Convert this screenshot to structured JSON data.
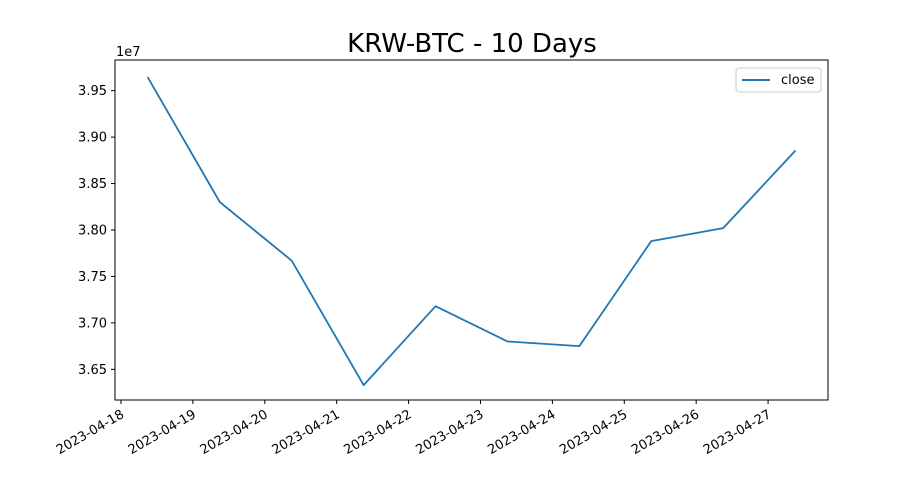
{
  "chart_data": {
    "type": "line",
    "title": "KRW-BTC - 10 Days",
    "xlabel": "",
    "ylabel": "",
    "y_offset_label": "1e7",
    "x_ticks": [
      "2023-04-18",
      "2023-04-19",
      "2023-04-20",
      "2023-04-21",
      "2023-04-22",
      "2023-04-23",
      "2023-04-24",
      "2023-04-25",
      "2023-04-26",
      "2023-04-27"
    ],
    "y_ticks": [
      "3.65",
      "3.70",
      "3.75",
      "3.80",
      "3.85",
      "3.90",
      "3.95"
    ],
    "y_tick_values": [
      3.65,
      3.7,
      3.75,
      3.8,
      3.85,
      3.9,
      3.95
    ],
    "x_range": [
      "2023-04-17T22:00",
      "2023-04-27T20:00"
    ],
    "y_range": [
      3.617,
      3.983
    ],
    "series": [
      {
        "name": "close",
        "color": "#1f77b4",
        "x": [
          "2023-04-18T09:00",
          "2023-04-19T09:00",
          "2023-04-20T09:00",
          "2023-04-21T09:00",
          "2023-04-22T09:00",
          "2023-04-23T09:00",
          "2023-04-24T09:00",
          "2023-04-25T09:00",
          "2023-04-26T09:00",
          "2023-04-27T09:00"
        ],
        "values": [
          3.964,
          3.83,
          3.767,
          3.633,
          3.718,
          3.68,
          3.675,
          3.788,
          3.802,
          3.885
        ]
      }
    ],
    "legend": {
      "position": "top-right",
      "entries": [
        "close"
      ]
    },
    "grid": false
  }
}
